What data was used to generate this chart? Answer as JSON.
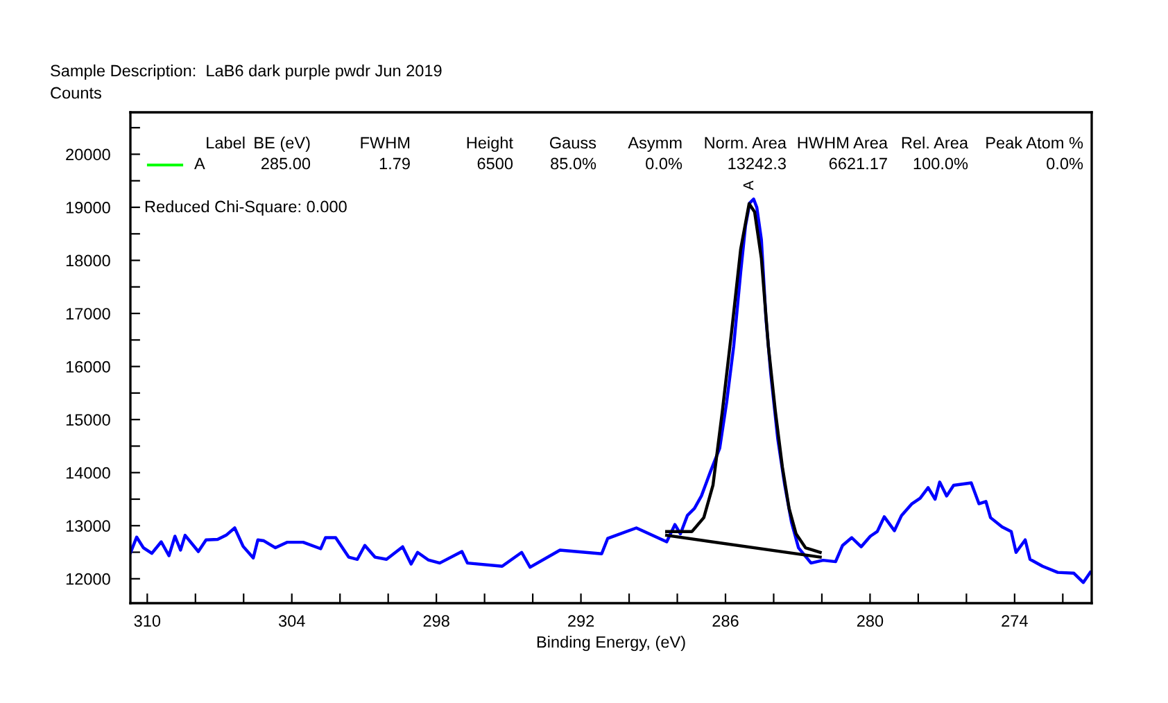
{
  "chart_data": {
    "type": "line",
    "title": "Sample Description:  LaB6 dark purple pwdr Jun 2019",
    "ylabel": "Counts",
    "xlabel": "Binding Energy, (eV)",
    "xlim": [
      310.7,
      270.8
    ],
    "ylim": [
      11540,
      20790
    ],
    "xticks": [
      310,
      {
        "value": 308,
        "label": null
      },
      {
        "value": 306,
        "label": null
      },
      304,
      {
        "value": 302,
        "label": null
      },
      {
        "value": 300,
        "label": null
      },
      298,
      {
        "value": 296,
        "label": null
      },
      {
        "value": 294,
        "label": null
      },
      292,
      {
        "value": 290,
        "label": null
      },
      {
        "value": 288,
        "label": null
      },
      286,
      {
        "value": 284,
        "label": null
      },
      {
        "value": 282,
        "label": null
      },
      280,
      {
        "value": 278,
        "label": null
      },
      {
        "value": 276,
        "label": null
      },
      274,
      {
        "value": 272,
        "label": null
      }
    ],
    "yticks": [
      12000,
      {
        "value": 12500,
        "label": null
      },
      13000,
      {
        "value": 13500,
        "label": null
      },
      14000,
      {
        "value": 14500,
        "label": null
      },
      15000,
      {
        "value": 15500,
        "label": null
      },
      16000,
      {
        "value": 16500,
        "label": null
      },
      17000,
      {
        "value": 17500,
        "label": null
      },
      18000,
      {
        "value": 18500,
        "label": null
      },
      19000,
      {
        "value": 19500,
        "label": null
      },
      20000,
      {
        "value": 20500,
        "label": null
      }
    ],
    "grid": false,
    "legend": false,
    "marker": "none",
    "line_style": "solid",
    "series": [
      {
        "color": "#0000ff",
        "x": [
          310.69,
          310.44,
          310.16,
          309.81,
          309.42,
          309.1,
          308.85,
          308.62,
          308.43,
          307.88,
          307.56,
          307.08,
          306.73,
          306.37,
          306.02,
          305.6,
          305.41,
          305.16,
          304.68,
          304.2,
          303.53,
          302.8,
          302.6,
          302.18,
          301.64,
          301.28,
          300.97,
          300.55,
          300.07,
          299.4,
          299.05,
          298.78,
          298.34,
          297.86,
          296.94,
          296.71,
          295.27,
          294.46,
          294.11,
          292.87,
          291.14,
          290.89,
          289.7,
          288.44,
          288.1,
          287.87,
          287.58,
          287.29,
          287.0,
          286.62,
          286.24,
          285.95,
          285.66,
          285.37,
          285.17,
          284.99,
          284.83,
          284.7,
          284.51,
          284.32,
          284.12,
          283.83,
          283.54,
          283.26,
          282.97,
          282.45,
          281.95,
          281.43,
          281.14,
          280.76,
          280.37,
          279.99,
          279.7,
          279.41,
          278.99,
          278.69,
          278.26,
          277.92,
          277.59,
          277.3,
          277.11,
          276.82,
          276.53,
          275.8,
          275.48,
          275.19,
          275.0,
          274.52,
          274.14,
          273.94,
          273.56,
          273.36,
          272.84,
          272.21,
          271.54,
          271.15,
          270.86
        ],
        "values": [
          12497,
          12785,
          12584,
          12479,
          12696,
          12435,
          12801,
          12539,
          12819,
          12513,
          12733,
          12741,
          12819,
          12958,
          12610,
          12393,
          12733,
          12715,
          12584,
          12688,
          12688,
          12566,
          12775,
          12775,
          12408,
          12366,
          12628,
          12408,
          12366,
          12602,
          12277,
          12497,
          12356,
          12296,
          12513,
          12296,
          12235,
          12497,
          12217,
          12539,
          12471,
          12759,
          12958,
          12696,
          13021,
          12846,
          13194,
          13325,
          13560,
          14024,
          14461,
          15332,
          16380,
          17775,
          18649,
          19084,
          19154,
          18997,
          18387,
          16903,
          15856,
          14634,
          13762,
          13063,
          12584,
          12296,
          12348,
          12322,
          12628,
          12775,
          12602,
          12801,
          12890,
          13168,
          12906,
          13194,
          13414,
          13518,
          13717,
          13500,
          13822,
          13560,
          13762,
          13806,
          13414,
          13456,
          13152,
          12976,
          12890,
          12497,
          12733,
          12366,
          12235,
          12120,
          12104,
          11930,
          12120
        ]
      },
      {
        "color": "#000000",
        "x": [
          288.44,
          287.39,
          286.9,
          286.52,
          286.13,
          285.75,
          285.37,
          285.02,
          284.79,
          284.51,
          284.22,
          283.93,
          283.64,
          283.36,
          283.07,
          282.68,
          282.07
        ],
        "values": [
          12890,
          12890,
          13152,
          13762,
          15157,
          16641,
          18211,
          19068,
          18911,
          18037,
          16380,
          15157,
          14110,
          13325,
          12846,
          12584,
          12497
        ]
      },
      {
        "color": "#000000",
        "x": [
          288.44,
          282.07
        ],
        "values": [
          12819,
          12408
        ]
      }
    ],
    "annotations": [
      "Label",
      "BE (eV)",
      "FWHM",
      "Height",
      "Gauss",
      "Asymm",
      "Norm. Area",
      "HWHM Area",
      "Rel. Area",
      "Peak Atom %",
      "A",
      "285.00",
      "1.79",
      "6500",
      "85.0%",
      "0.0%",
      "13242.3",
      "6621.17",
      "100.0%",
      "0.0%",
      "Reduced Chi-Square: 0.000",
      {
        "text": "A",
        "x": 285,
        "y": 19250
      }
    ]
  }
}
